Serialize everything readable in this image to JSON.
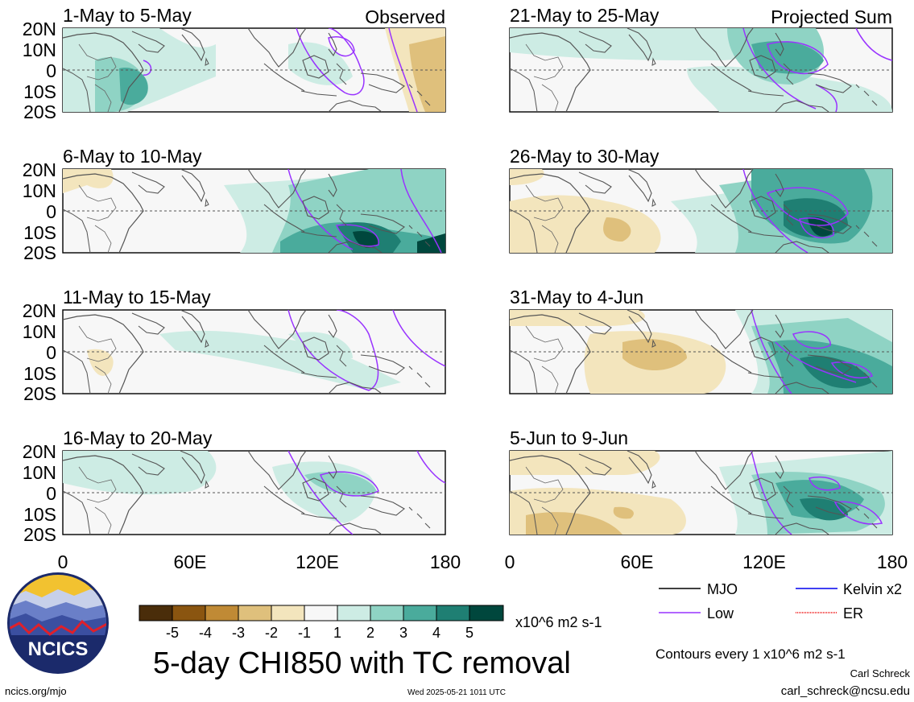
{
  "figure": {
    "title": "5-day CHI850 with TC removal",
    "observed_label": "Observed",
    "projected_label": "Projected Sum",
    "units": "x10^6 m2 s-1",
    "contour_note": "Contours every 1 x10^6 m2 s-1",
    "author": "Carl Schreck",
    "email": "carl_schreck@ncsu.edu",
    "website": "ncics.org/mjo",
    "timestamp": "Wed 2025-05-21 1011 UTC",
    "logo_text": "NCICS"
  },
  "panels_left": [
    {
      "title": "1-May to 5-May"
    },
    {
      "title": "6-May to 10-May"
    },
    {
      "title": "11-May to 15-May"
    },
    {
      "title": "16-May to 20-May"
    }
  ],
  "panels_right": [
    {
      "title": "21-May to 25-May"
    },
    {
      "title": "26-May to 30-May"
    },
    {
      "title": "31-May to 4-Jun"
    },
    {
      "title": "5-Jun to 9-Jun"
    }
  ],
  "axes": {
    "lat_labels": [
      "20N",
      "10N",
      "0",
      "10S",
      "20S"
    ],
    "lon_labels": [
      "0",
      "60E",
      "120E",
      "180"
    ]
  },
  "colorbar": {
    "tick_labels": [
      "-5",
      "-4",
      "-3",
      "-2",
      "-1",
      "1",
      "2",
      "3",
      "4",
      "5"
    ],
    "colors": [
      "#4a2d0a",
      "#8a5510",
      "#c08a35",
      "#dfc07c",
      "#f3e5bd",
      "#f7f7f7",
      "#cdece4",
      "#8fd3c4",
      "#4aab9c",
      "#1f7f73",
      "#00473d"
    ]
  },
  "legend": {
    "mjo": {
      "label": "MJO",
      "color": "#000000"
    },
    "kelvin": {
      "label": "Kelvin x2",
      "color": "#0000ee"
    },
    "low": {
      "label": "Low",
      "color": "#9933ff"
    },
    "er": {
      "label": "ER",
      "color": "#ee0000"
    }
  }
}
